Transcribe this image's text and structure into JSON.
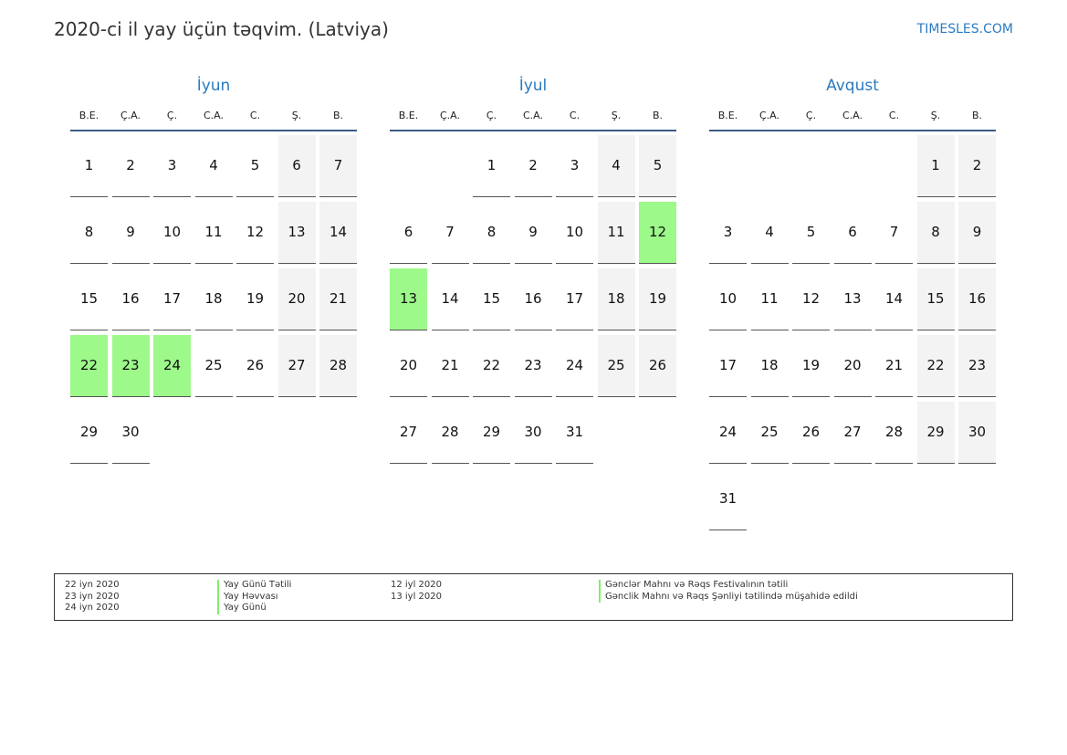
{
  "title": "2020-ci il yay üçün təqvim. (Latviya)",
  "brand": "TIMESLES.COM",
  "colors": {
    "holiday": "#9cf98a",
    "weekend": "#f3f3f3",
    "accent": "#2a7bc0"
  },
  "weekdays": [
    "B.E.",
    "Ç.A.",
    "Ç.",
    "C.A.",
    "C.",
    "Ş.",
    "B."
  ],
  "months": [
    {
      "name": "İyun",
      "first_weekday": 0,
      "days": 30,
      "holidays": [
        22,
        23,
        24
      ]
    },
    {
      "name": "İyul",
      "first_weekday": 2,
      "days": 31,
      "holidays": [
        12,
        13
      ]
    },
    {
      "name": "Avqust",
      "first_weekday": 5,
      "days": 31,
      "holidays": []
    }
  ],
  "legend": {
    "left": [
      {
        "date": "22 iyn 2020",
        "name": "Yay Günü Tətili"
      },
      {
        "date": "23 iyn 2020",
        "name": "Yay Həvvası"
      },
      {
        "date": "24 iyn 2020",
        "name": "Yay Günü"
      }
    ],
    "right": [
      {
        "date": "12 iyl 2020",
        "name": "Gənclər Mahnı və Rəqs Festivalının tətili"
      },
      {
        "date": "13 iyl 2020",
        "name": "Gənclik Mahnı və Rəqs Şənliyi tətilində müşahidə edildi"
      }
    ]
  }
}
